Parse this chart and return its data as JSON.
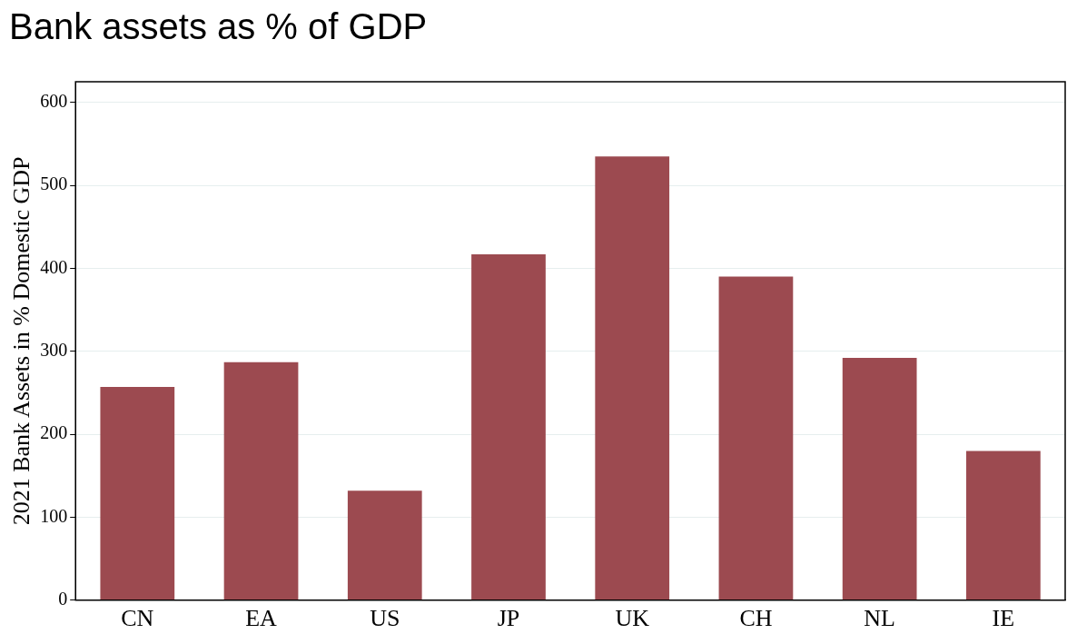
{
  "chart_data": {
    "type": "bar",
    "title": "Bank assets as % of GDP",
    "ylabel": "2021 Bank Assets in % Domestic GDP",
    "categories": [
      "CN",
      "EA",
      "US",
      "JP",
      "UK",
      "CH",
      "NL",
      "IE"
    ],
    "values": [
      257,
      287,
      132,
      417,
      535,
      390,
      292,
      180
    ],
    "color": "#9c4a50",
    "ylim": [
      0,
      625
    ],
    "yticks": [
      0,
      100,
      200,
      300,
      400,
      500,
      600
    ],
    "grid": "y",
    "legend": false
  }
}
